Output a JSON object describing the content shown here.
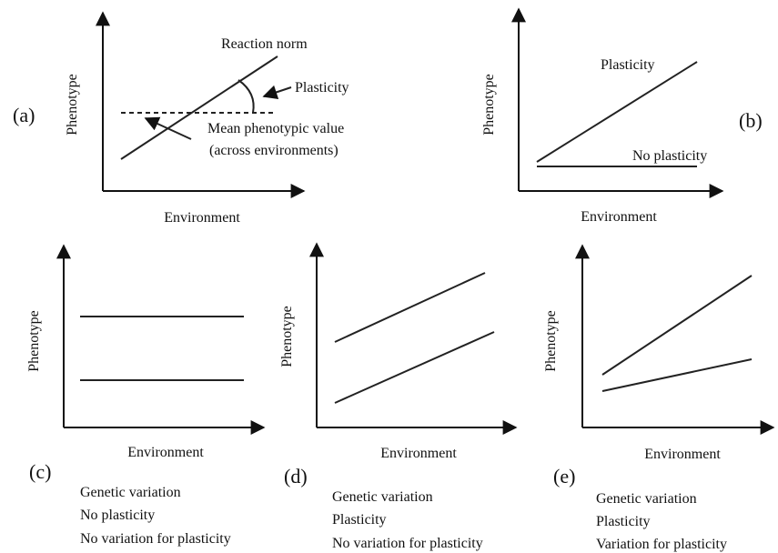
{
  "panels": [
    {
      "label": "(a)",
      "x_axis": "Environment",
      "y_axis": "Phenotype",
      "annotations": [
        "Reaction norm",
        "Plasticity",
        "Mean phenotypic value",
        "(across environments)"
      ]
    },
    {
      "label": "(b)",
      "x_axis": "Environment",
      "y_axis": "Phenotype",
      "annotations": [
        "Plasticity",
        "No plasticity"
      ]
    },
    {
      "label": "(c)",
      "x_axis": "Environment",
      "y_axis": "Phenotype",
      "caption": [
        "Genetic variation",
        "No plasticity",
        "No variation for plasticity"
      ]
    },
    {
      "label": "(d)",
      "x_axis": "Environment",
      "y_axis": "Phenotype",
      "caption": [
        "Genetic variation",
        "Plasticity",
        "No variation for plasticity"
      ]
    },
    {
      "label": "(e)",
      "x_axis": "Environment",
      "y_axis": "Phenotype",
      "caption": [
        "Genetic variation",
        "Plasticity",
        "Variation for plasticity"
      ]
    }
  ]
}
